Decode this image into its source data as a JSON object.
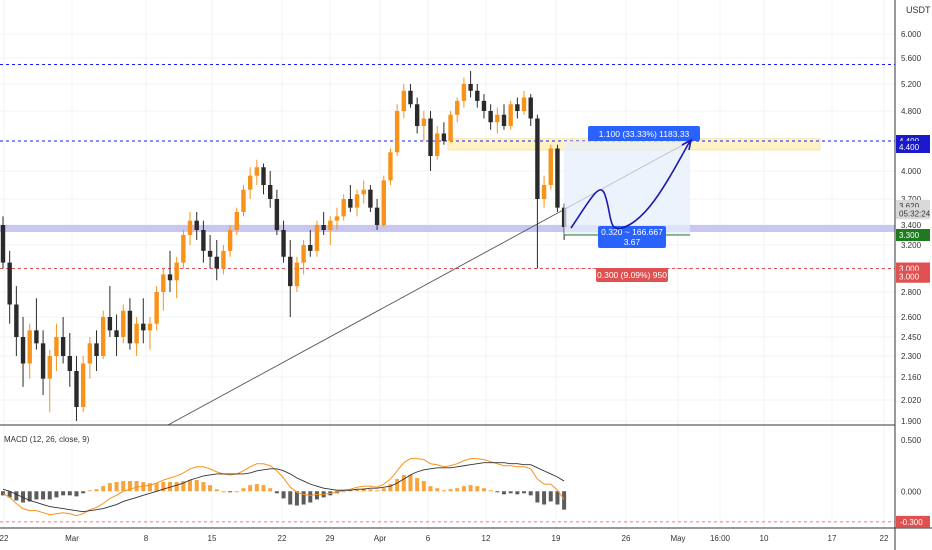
{
  "chart_data": {
    "type": "candlestick",
    "currency": "USDT",
    "price_axis": {
      "ticks": [
        "6.000",
        "5.600",
        "5.200",
        "4.800",
        "4.000",
        "3.700",
        "3.400",
        "3.200",
        "2.800",
        "2.600",
        "2.450",
        "2.300",
        "2.160",
        "2.020",
        "1.900"
      ],
      "tick_values": [
        6.0,
        5.6,
        5.2,
        4.8,
        4.0,
        3.7,
        3.4,
        3.2,
        2.8,
        2.6,
        2.45,
        2.3,
        2.16,
        2.02,
        1.9
      ],
      "range": [
        1.88,
        6.35
      ]
    },
    "time_axis": {
      "labels": [
        "22",
        "Mar",
        "8",
        "15",
        "22",
        "29",
        "Apr",
        "6",
        "12",
        "19",
        "26",
        "May",
        "16:00",
        "10",
        "17",
        "22"
      ]
    },
    "horizontal_levels": [
      {
        "price": 5.5,
        "label": "5.500",
        "color": "#1a1aff"
      },
      {
        "price": 4.4,
        "label": "4.400",
        "color": "#1a1aff"
      },
      {
        "price": 3.0,
        "label": "3.000",
        "color": "#e05050"
      }
    ],
    "zones": [
      {
        "name": "resistance",
        "from": 4.28,
        "to": 4.43,
        "color": "#fff3c4"
      },
      {
        "name": "support",
        "from": 3.33,
        "to": 3.4,
        "color": "#c9c6f2"
      }
    ],
    "price_badges": [
      {
        "label": "4.400",
        "price": 4.4,
        "color": "#1a1acc"
      },
      {
        "label": "4.400",
        "price": 4.32,
        "color": "#1a1acc"
      },
      {
        "label": "3.620",
        "price": 3.62,
        "color": "#d9d9d9",
        "text_color": "#333333"
      },
      {
        "label": "05:32:24",
        "price": 3.535,
        "color": "#d9d9d9",
        "text_color": "#333333"
      },
      {
        "label": "3.300",
        "price": 3.3,
        "color": "#1f7a1f"
      },
      {
        "label": "3.000",
        "price": 3.0,
        "color": "#e05050"
      },
      {
        "label": "3.000",
        "price": 2.93,
        "color": "#e05050"
      }
    ],
    "position": {
      "target_label": "1.100 (33.33%) 1183.33",
      "entry_label_line1": "0.320 ~ 166.667",
      "entry_label_line2": "3.67",
      "stop_label": "0.300 (9.09%) 950",
      "entry_price": 3.3,
      "target_price": 4.4,
      "stop_price": 3.0
    },
    "ohlc": [
      [
        3.4,
        3.5,
        3.0,
        3.05
      ],
      [
        3.05,
        3.15,
        2.55,
        2.7
      ],
      [
        2.7,
        2.85,
        2.3,
        2.45
      ],
      [
        2.45,
        2.6,
        2.1,
        2.25
      ],
      [
        2.25,
        2.55,
        2.15,
        2.5
      ],
      [
        2.5,
        2.75,
        2.35,
        2.4
      ],
      [
        2.4,
        2.5,
        2.05,
        2.15
      ],
      [
        2.15,
        2.35,
        1.95,
        2.3
      ],
      [
        2.3,
        2.55,
        2.2,
        2.45
      ],
      [
        2.45,
        2.6,
        2.25,
        2.3
      ],
      [
        2.3,
        2.48,
        2.1,
        2.2
      ],
      [
        2.2,
        2.3,
        1.9,
        1.98
      ],
      [
        1.98,
        2.3,
        1.95,
        2.25
      ],
      [
        2.25,
        2.45,
        2.15,
        2.4
      ],
      [
        2.4,
        2.5,
        2.2,
        2.3
      ],
      [
        2.3,
        2.65,
        2.28,
        2.6
      ],
      [
        2.6,
        2.85,
        2.45,
        2.5
      ],
      [
        2.5,
        2.62,
        2.3,
        2.45
      ],
      [
        2.45,
        2.7,
        2.4,
        2.65
      ],
      [
        2.65,
        2.75,
        2.35,
        2.4
      ],
      [
        2.4,
        2.6,
        2.3,
        2.55
      ],
      [
        2.55,
        2.75,
        2.4,
        2.5
      ],
      [
        2.5,
        2.6,
        2.35,
        2.55
      ],
      [
        2.55,
        2.85,
        2.5,
        2.8
      ],
      [
        2.8,
        3.0,
        2.65,
        2.95
      ],
      [
        2.95,
        3.15,
        2.8,
        2.9
      ],
      [
        2.9,
        3.1,
        2.75,
        3.05
      ],
      [
        3.05,
        3.35,
        3.0,
        3.3
      ],
      [
        3.3,
        3.55,
        3.2,
        3.45
      ],
      [
        3.45,
        3.55,
        3.25,
        3.35
      ],
      [
        3.35,
        3.45,
        3.05,
        3.15
      ],
      [
        3.15,
        3.3,
        3.0,
        3.1
      ],
      [
        3.1,
        3.25,
        2.9,
        3.0
      ],
      [
        3.0,
        3.2,
        2.95,
        3.15
      ],
      [
        3.15,
        3.4,
        3.1,
        3.35
      ],
      [
        3.35,
        3.6,
        3.3,
        3.55
      ],
      [
        3.55,
        3.85,
        3.5,
        3.8
      ],
      [
        3.8,
        4.05,
        3.7,
        3.95
      ],
      [
        3.95,
        4.15,
        3.85,
        4.05
      ],
      [
        4.05,
        4.1,
        3.75,
        3.85
      ],
      [
        3.85,
        4.0,
        3.6,
        3.7
      ],
      [
        3.7,
        3.8,
        3.3,
        3.35
      ],
      [
        3.35,
        3.45,
        3.05,
        3.1
      ],
      [
        3.1,
        3.25,
        2.6,
        2.85
      ],
      [
        2.85,
        3.1,
        2.8,
        3.05
      ],
      [
        3.05,
        3.25,
        2.95,
        3.2
      ],
      [
        3.2,
        3.35,
        3.1,
        3.15
      ],
      [
        3.15,
        3.45,
        3.1,
        3.4
      ],
      [
        3.4,
        3.55,
        3.3,
        3.35
      ],
      [
        3.35,
        3.5,
        3.2,
        3.45
      ],
      [
        3.45,
        3.6,
        3.35,
        3.5
      ],
      [
        3.5,
        3.75,
        3.45,
        3.7
      ],
      [
        3.7,
        3.85,
        3.55,
        3.6
      ],
      [
        3.6,
        3.8,
        3.5,
        3.75
      ],
      [
        3.75,
        3.9,
        3.65,
        3.8
      ],
      [
        3.8,
        3.85,
        3.55,
        3.6
      ],
      [
        3.6,
        3.7,
        3.35,
        3.4
      ],
      [
        3.4,
        3.95,
        3.38,
        3.9
      ],
      [
        3.9,
        4.3,
        3.85,
        4.25
      ],
      [
        4.25,
        4.9,
        4.2,
        4.8
      ],
      [
        4.8,
        5.2,
        4.7,
        5.1
      ],
      [
        5.1,
        5.2,
        4.85,
        4.9
      ],
      [
        4.9,
        5.0,
        4.5,
        4.6
      ],
      [
        4.6,
        4.8,
        4.4,
        4.7
      ],
      [
        4.7,
        4.8,
        4.0,
        4.2
      ],
      [
        4.2,
        4.6,
        4.15,
        4.5
      ],
      [
        4.5,
        4.65,
        4.35,
        4.4
      ],
      [
        4.4,
        4.8,
        4.38,
        4.75
      ],
      [
        4.75,
        5.0,
        4.65,
        4.95
      ],
      [
        4.95,
        5.3,
        4.85,
        5.2
      ],
      [
        5.2,
        5.4,
        5.0,
        5.1
      ],
      [
        5.1,
        5.2,
        4.85,
        4.95
      ],
      [
        4.95,
        5.05,
        4.7,
        4.8
      ],
      [
        4.8,
        4.9,
        4.55,
        4.65
      ],
      [
        4.65,
        4.85,
        4.5,
        4.75
      ],
      [
        4.75,
        4.9,
        4.55,
        4.6
      ],
      [
        4.6,
        4.95,
        4.55,
        4.9
      ],
      [
        4.9,
        5.0,
        4.7,
        4.8
      ],
      [
        4.8,
        5.1,
        4.75,
        5.0
      ],
      [
        5.0,
        5.05,
        4.6,
        4.7
      ],
      [
        4.7,
        4.75,
        3.0,
        3.7
      ],
      [
        3.7,
        3.95,
        3.6,
        3.85
      ],
      [
        3.85,
        4.35,
        3.8,
        4.3
      ],
      [
        4.3,
        4.35,
        3.55,
        3.6
      ],
      [
        3.6,
        3.65,
        3.25,
        3.38
      ]
    ],
    "macd": {
      "label": "MACD (12, 26, close, 9)",
      "axis_ticks": [
        "0.500",
        "0.000",
        "-0.300"
      ],
      "tick_values": [
        0.5,
        0.0,
        -0.3
      ],
      "range": [
        -0.36,
        0.62
      ],
      "macd_line": [
        -0.02,
        -0.06,
        -0.12,
        -0.17,
        -0.19,
        -0.19,
        -0.21,
        -0.23,
        -0.22,
        -0.21,
        -0.22,
        -0.24,
        -0.22,
        -0.18,
        -0.16,
        -0.12,
        -0.07,
        -0.04,
        0.0,
        0.02,
        0.04,
        0.05,
        0.06,
        0.08,
        0.11,
        0.13,
        0.15,
        0.18,
        0.22,
        0.24,
        0.24,
        0.22,
        0.19,
        0.17,
        0.16,
        0.17,
        0.2,
        0.24,
        0.27,
        0.27,
        0.25,
        0.2,
        0.13,
        0.04,
        -0.01,
        -0.03,
        -0.04,
        -0.03,
        -0.03,
        -0.02,
        -0.01,
        0.01,
        0.02,
        0.04,
        0.05,
        0.05,
        0.04,
        0.07,
        0.12,
        0.2,
        0.28,
        0.32,
        0.32,
        0.31,
        0.27,
        0.26,
        0.24,
        0.25,
        0.27,
        0.3,
        0.32,
        0.32,
        0.31,
        0.29,
        0.27,
        0.25,
        0.25,
        0.24,
        0.24,
        0.22,
        0.12,
        0.07,
        0.07,
        0.01,
        -0.08
      ],
      "signal_line": [
        0.02,
        0.0,
        -0.03,
        -0.06,
        -0.09,
        -0.11,
        -0.13,
        -0.15,
        -0.16,
        -0.17,
        -0.18,
        -0.19,
        -0.2,
        -0.19,
        -0.18,
        -0.17,
        -0.15,
        -0.13,
        -0.1,
        -0.08,
        -0.06,
        -0.04,
        -0.02,
        0.0,
        0.02,
        0.04,
        0.06,
        0.08,
        0.11,
        0.13,
        0.15,
        0.16,
        0.17,
        0.17,
        0.17,
        0.17,
        0.17,
        0.18,
        0.2,
        0.21,
        0.22,
        0.22,
        0.2,
        0.17,
        0.13,
        0.1,
        0.07,
        0.05,
        0.03,
        0.02,
        0.01,
        0.01,
        0.01,
        0.02,
        0.02,
        0.03,
        0.03,
        0.04,
        0.05,
        0.08,
        0.12,
        0.16,
        0.19,
        0.21,
        0.22,
        0.23,
        0.23,
        0.23,
        0.24,
        0.25,
        0.26,
        0.27,
        0.28,
        0.28,
        0.28,
        0.28,
        0.27,
        0.27,
        0.26,
        0.26,
        0.23,
        0.2,
        0.17,
        0.14,
        0.1
      ]
    }
  }
}
